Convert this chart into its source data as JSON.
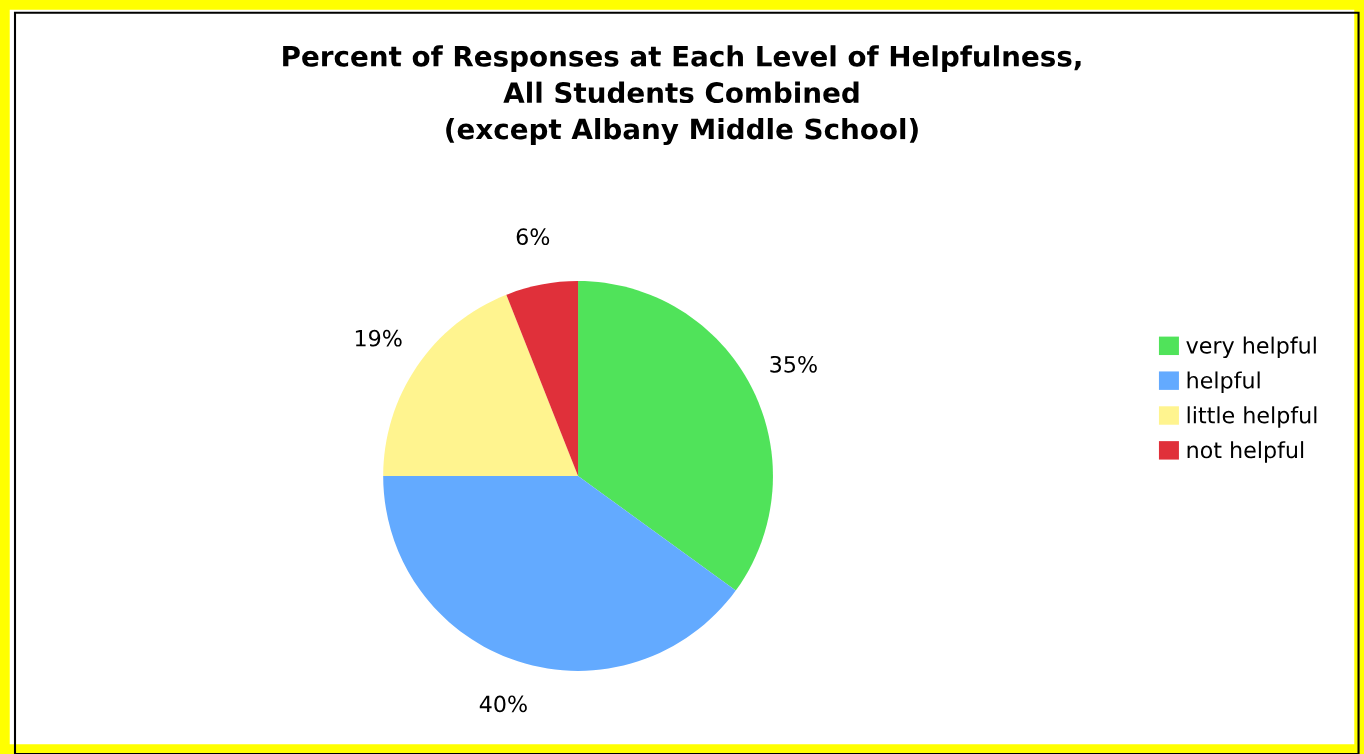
{
  "chart_data": {
    "type": "pie",
    "title": "Percent of Responses at Each Level of Helpfulness,\nAll Students Combined\n(except Albany Middle School)",
    "categories": [
      "very helpful",
      "helpful",
      "little helpful",
      "not helpful"
    ],
    "values": [
      35,
      40,
      19,
      6
    ],
    "value_labels": [
      "35%",
      "40%",
      "19%",
      "6%"
    ],
    "colors": [
      "#50e35a",
      "#63aaff",
      "#fff48f",
      "#e0303a"
    ],
    "legend": "right"
  }
}
